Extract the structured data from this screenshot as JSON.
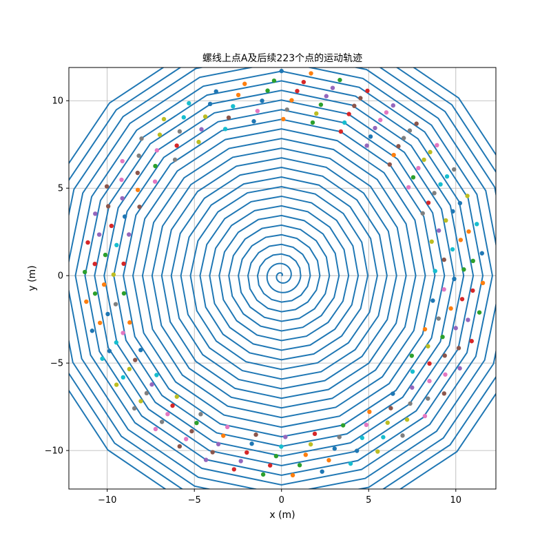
{
  "chart_data": {
    "type": "line",
    "title": "螺线上点A及后续223个点的运动轨迹",
    "xlabel": "x (m)",
    "ylabel": "y (m)",
    "xlim": [
      -12.2,
      12.3
    ],
    "ylim": [
      -12.2,
      11.9
    ],
    "xticks": [
      -10,
      -5,
      0,
      5,
      10
    ],
    "yticks": [
      -10,
      -5,
      0,
      5,
      10
    ],
    "xtick_labels": [
      "−10",
      "−5",
      "0",
      "5",
      "10"
    ],
    "ytick_labels": [
      "−10",
      "−5",
      "0",
      "5",
      "10"
    ],
    "grid": true,
    "spiral": {
      "pitch": 0.55,
      "max_radius": 14.5,
      "segments_per_turn": 16,
      "direction": "counterclockwise",
      "color": "#1f77b4"
    },
    "points": {
      "count": 224,
      "radius_start": 11.7,
      "radius_end": 8.75,
      "start_angle_deg": 90,
      "arc_spacing": 1.7,
      "direction": "counterclockwise",
      "colors": [
        "#1f77b4",
        "#ff7f0e",
        "#2ca02c",
        "#d62728",
        "#9467bd",
        "#8c564b",
        "#e377c2",
        "#7f7f7f",
        "#bcbd22",
        "#17becf"
      ]
    }
  }
}
